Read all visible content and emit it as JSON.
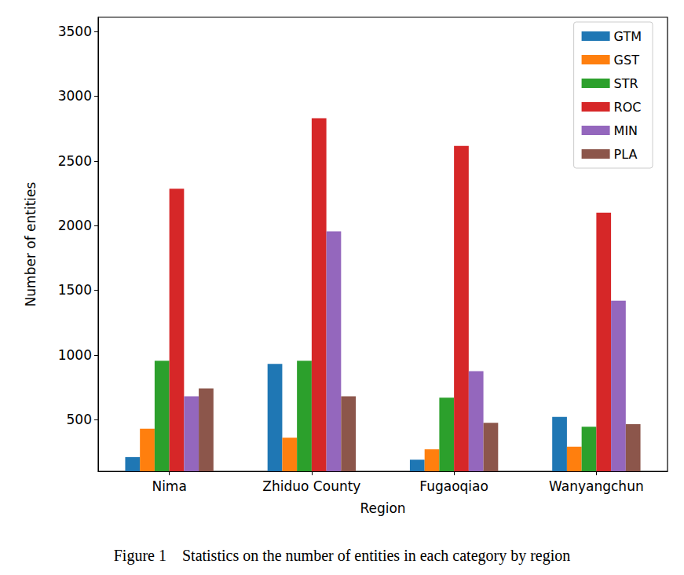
{
  "chart_data": {
    "type": "bar",
    "title": "Figure 1    Statistics on the number of entities in each category by region",
    "x_label": "Region",
    "y_label": "Number of entities",
    "categories": [
      "Nima",
      "Zhiduo County",
      "Fugaoqiao",
      "Wanyangchun"
    ],
    "series": [
      {
        "name": "GTM",
        "color": "#1f77b4",
        "values": [
          210,
          930,
          190,
          520
        ]
      },
      {
        "name": "GST",
        "color": "#ff7f0e",
        "values": [
          430,
          360,
          270,
          290
        ]
      },
      {
        "name": "STR",
        "color": "#2ca02c",
        "values": [
          955,
          955,
          670,
          445
        ]
      },
      {
        "name": "ROC",
        "color": "#d62728",
        "values": [
          2285,
          2830,
          2615,
          2100
        ]
      },
      {
        "name": "MIN",
        "color": "#9467bd",
        "values": [
          680,
          1955,
          875,
          1420
        ]
      },
      {
        "name": "PLA",
        "color": "#8c564b",
        "values": [
          740,
          680,
          475,
          465
        ]
      }
    ],
    "ylim": [
      100,
      3610
    ],
    "yticks": [
      500,
      1000,
      1500,
      2000,
      2500,
      3000,
      3500
    ],
    "grid": false,
    "legend": "upper right"
  }
}
